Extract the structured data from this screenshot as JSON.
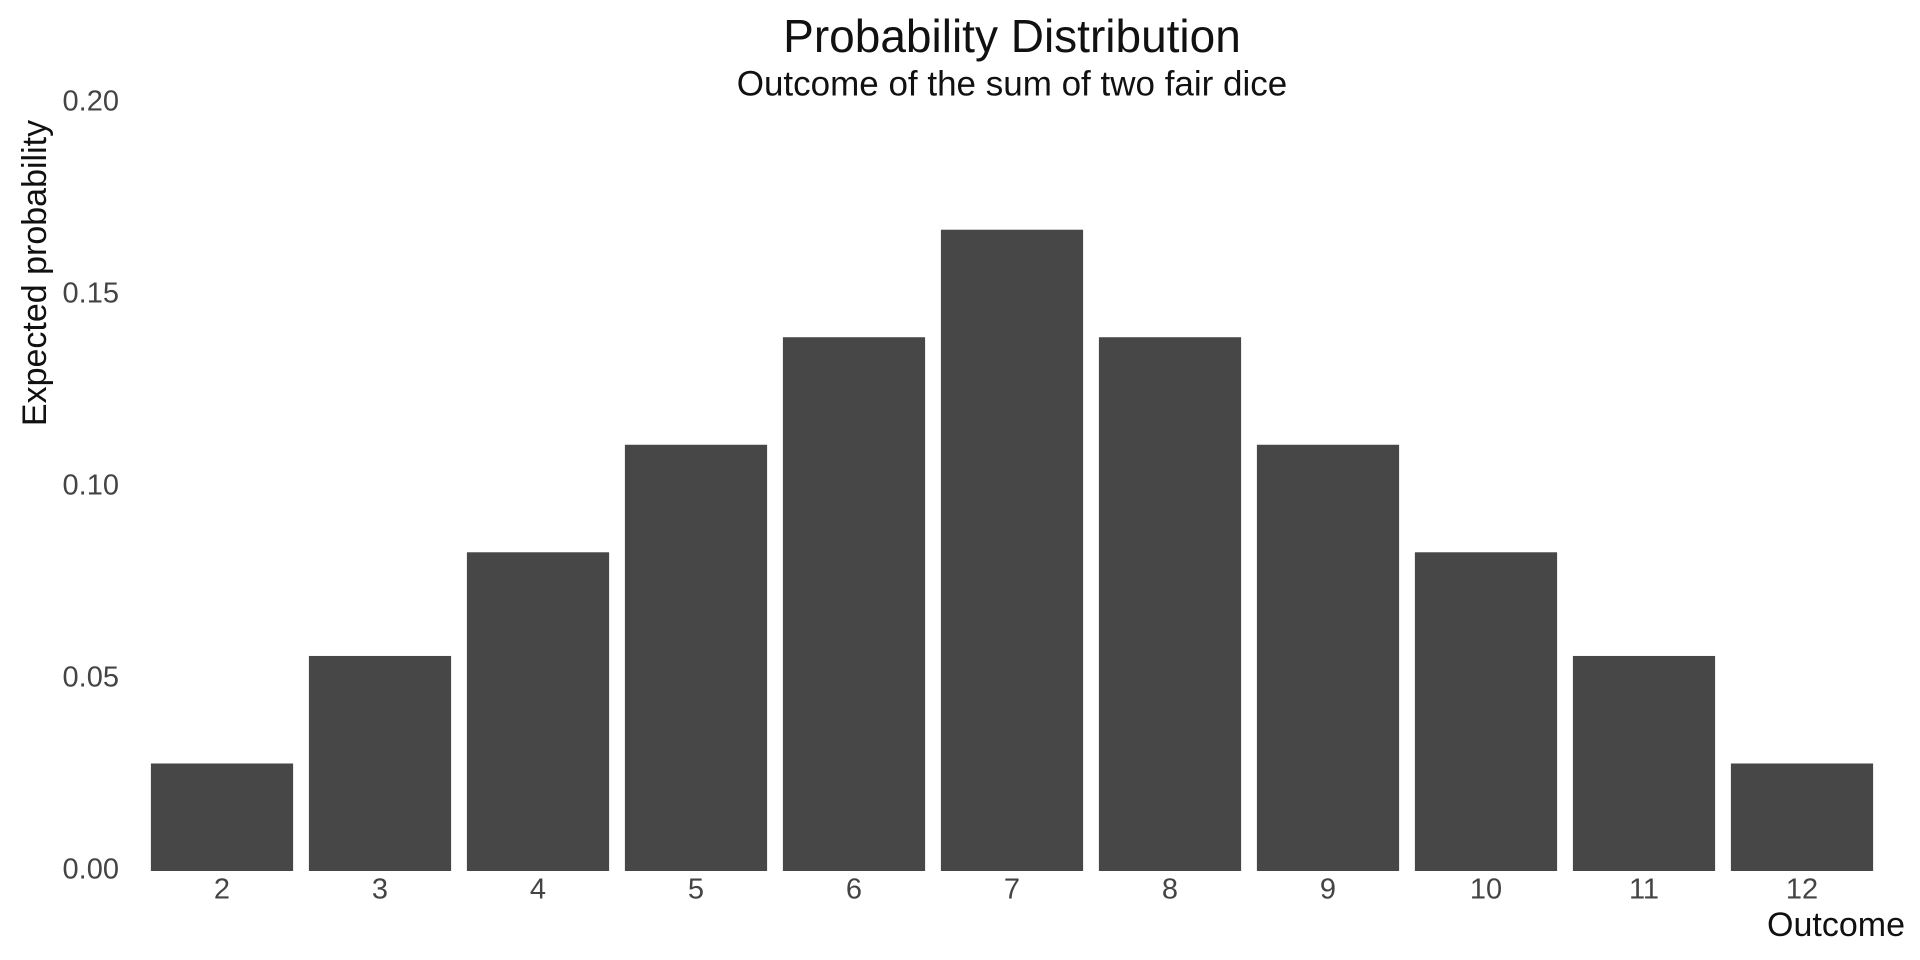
{
  "chart_data": {
    "type": "bar",
    "title": "Probability Distribution",
    "subtitle": "Outcome of the sum of two fair dice",
    "x_label": "Outcome",
    "y_label": "Expected probability",
    "categories": [
      "2",
      "3",
      "4",
      "5",
      "6",
      "7",
      "8",
      "9",
      "10",
      "11",
      "12"
    ],
    "values": [
      0.028,
      0.056,
      0.083,
      0.111,
      0.139,
      0.167,
      0.139,
      0.111,
      0.083,
      0.056,
      0.028
    ],
    "color": "#474747",
    "ylim": [
      0,
      0.2
    ],
    "yticks": [
      {
        "value": 0,
        "label": "0.00"
      },
      {
        "value": 0.05,
        "label": "0.05"
      },
      {
        "value": 0.1,
        "label": "0.10"
      },
      {
        "value": 0.15,
        "label": "0.15"
      },
      {
        "value": 0.2,
        "label": "0.20"
      }
    ],
    "grid": false
  }
}
